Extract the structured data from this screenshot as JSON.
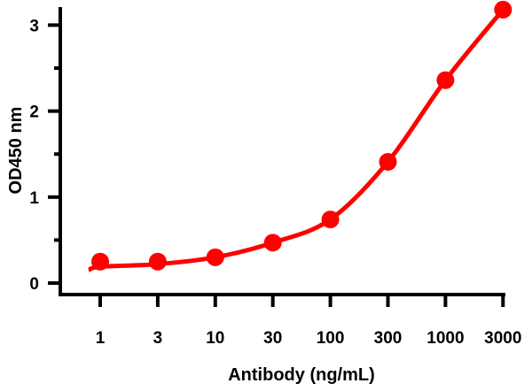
{
  "chart_data": {
    "type": "line",
    "title": "",
    "xlabel": "Antibody (ng/mL)",
    "ylabel": "OD450 nm",
    "x_scale": "log",
    "categories": [
      "1",
      "3",
      "10",
      "30",
      "100",
      "300",
      "1000",
      "3000"
    ],
    "x": [
      1,
      3,
      10,
      30,
      100,
      300,
      1000,
      3000
    ],
    "series": [
      {
        "values": [
          0.25,
          0.25,
          0.3,
          0.47,
          0.74,
          1.41,
          2.36,
          3.18
        ],
        "color": "#ff0000",
        "marker": "circle",
        "fit_curve": true
      }
    ],
    "ylim": [
      0,
      3.3
    ],
    "yticks": [
      "0",
      "1",
      "2",
      "3"
    ],
    "grid": false,
    "legend": "none"
  }
}
